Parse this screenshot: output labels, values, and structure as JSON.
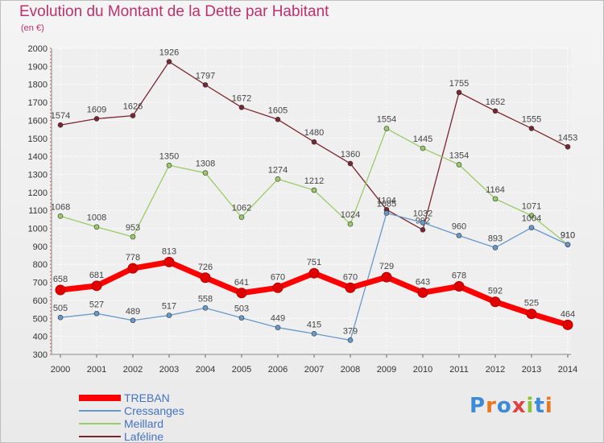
{
  "title": "Evolution du Montant de la Dette par Habitant",
  "subtitle": "(en €)",
  "logo": {
    "text": "Proxiti",
    "colors": [
      "#3c8bd6",
      "#e87722",
      "#3c8bd6",
      "#e04040",
      "#8ac43f",
      "#3c8bd6",
      "#e87722"
    ]
  },
  "chart_data": {
    "type": "line",
    "title": "Evolution du Montant de la Dette par Habitant",
    "subtitle": "(en €)",
    "x": [
      "2000",
      "2001",
      "2002",
      "2003",
      "2004",
      "2005",
      "2006",
      "2007",
      "2008",
      "2009",
      "2010",
      "2011",
      "2012",
      "2013",
      "2014"
    ],
    "ylim": [
      300,
      2000
    ],
    "yticks": [
      300,
      400,
      500,
      600,
      700,
      800,
      900,
      1000,
      1100,
      1200,
      1300,
      1400,
      1500,
      1600,
      1700,
      1800,
      1900,
      2000
    ],
    "grid": true,
    "legend_position": "bottom-left",
    "series": [
      {
        "name": "TREBAN",
        "color": "#ff0000",
        "values": [
          658,
          681,
          778,
          813,
          726,
          641,
          670,
          751,
          670,
          729,
          643,
          678,
          592,
          525,
          464
        ]
      },
      {
        "name": "Cressanges",
        "color": "#6699cc",
        "values": [
          505,
          527,
          489,
          517,
          558,
          503,
          449,
          415,
          379,
          1085,
          1032,
          960,
          893,
          1004,
          910
        ]
      },
      {
        "name": "Meillard",
        "color": "#99cc66",
        "values": [
          1068,
          1008,
          953,
          1350,
          1308,
          1062,
          1274,
          1212,
          1024,
          1554,
          1445,
          1354,
          1164,
          1071,
          910
        ]
      },
      {
        "name": "Laféline",
        "color": "#7a2630",
        "values": [
          1574,
          1609,
          1626,
          1926,
          1797,
          1672,
          1605,
          1480,
          1360,
          1104,
          992,
          1755,
          1652,
          1555,
          1453
        ]
      }
    ]
  }
}
